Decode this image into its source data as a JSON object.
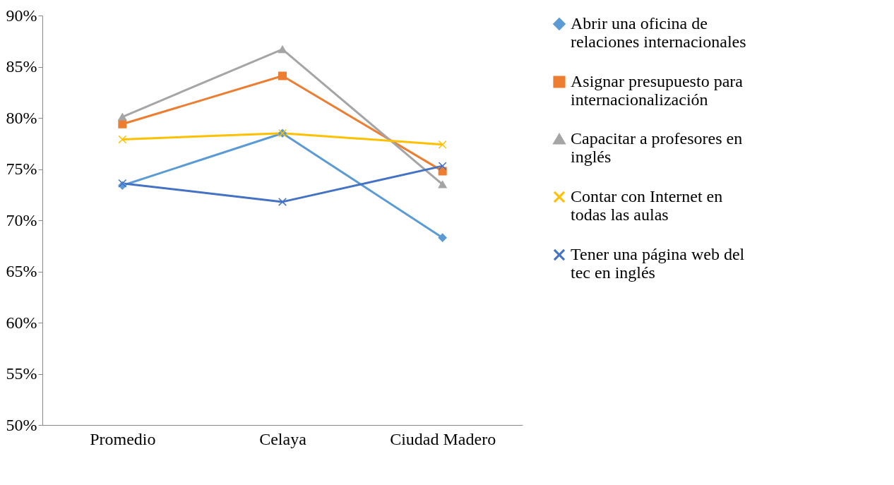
{
  "chart_data": {
    "type": "line",
    "categories": [
      "Promedio",
      "Celaya",
      "Ciudad Madero"
    ],
    "ylim": [
      50,
      90
    ],
    "yticks": [
      {
        "value": 50,
        "label": "50%"
      },
      {
        "value": 55,
        "label": "55%"
      },
      {
        "value": 60,
        "label": "60%"
      },
      {
        "value": 65,
        "label": "65%"
      },
      {
        "value": 70,
        "label": "70%"
      },
      {
        "value": 75,
        "label": "75%"
      },
      {
        "value": 80,
        "label": "80%"
      },
      {
        "value": 85,
        "label": "85%"
      },
      {
        "value": 90,
        "label": "90%"
      }
    ],
    "grid": false,
    "legend": "right",
    "series": [
      {
        "name": "Abrir una oficina de relaciones internacionales",
        "color": "#5b9bd5",
        "marker": "diamond",
        "values": [
          73.4,
          78.5,
          68.3
        ]
      },
      {
        "name": "Asignar presupuesto para internacionalización",
        "color": "#ed7d31",
        "marker": "square",
        "values": [
          79.4,
          84.1,
          74.8
        ]
      },
      {
        "name": "Capacitar a profesores en inglés",
        "color": "#a5a5a5",
        "marker": "triangle",
        "values": [
          80.1,
          86.7,
          73.5
        ]
      },
      {
        "name": "Contar con Internet en todas las aulas",
        "color": "#ffc000",
        "marker": "cross",
        "values": [
          77.9,
          78.5,
          77.4
        ]
      },
      {
        "name": "Tener una página web del tec en inglés",
        "color": "#4472c4",
        "marker": "cross",
        "values": [
          73.6,
          71.8,
          75.3
        ]
      }
    ]
  }
}
